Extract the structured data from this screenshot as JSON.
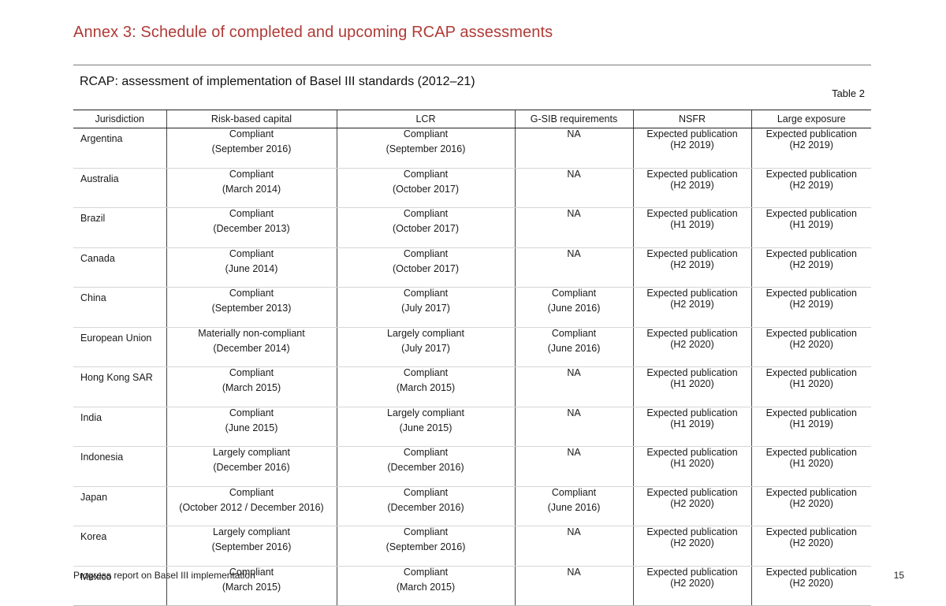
{
  "annex_title": "Annex 3: Schedule of completed and upcoming RCAP assessments",
  "table_title": "RCAP: assessment of implementation of Basel III standards (2012–21)",
  "table_number": "Table 2",
  "columns": [
    "Jurisdiction",
    "Risk-based capital",
    "LCR",
    "G-SIB requirements",
    "NSFR",
    "Large exposure"
  ],
  "rows": [
    {
      "jurisdiction": "Argentina",
      "rbc": [
        "Compliant",
        "(September 2016)"
      ],
      "lcr": [
        "Compliant",
        "(September 2016)"
      ],
      "gsib": [
        "NA",
        ""
      ],
      "nsfr": [
        "Expected publication",
        "(H2 2019)"
      ],
      "le": [
        "Expected publication",
        "(H2 2019)"
      ]
    },
    {
      "jurisdiction": "Australia",
      "rbc": [
        "Compliant",
        "(March 2014)"
      ],
      "lcr": [
        "Compliant",
        "(October 2017)"
      ],
      "gsib": [
        "NA",
        ""
      ],
      "nsfr": [
        "Expected publication",
        "(H2 2019)"
      ],
      "le": [
        "Expected publication",
        "(H2 2019)"
      ]
    },
    {
      "jurisdiction": "Brazil",
      "rbc": [
        "Compliant",
        "(December 2013)"
      ],
      "lcr": [
        "Compliant",
        "(October 2017)"
      ],
      "gsib": [
        "NA",
        ""
      ],
      "nsfr": [
        "Expected publication",
        "(H1 2019)"
      ],
      "le": [
        "Expected publication",
        "(H1 2019)"
      ]
    },
    {
      "jurisdiction": "Canada",
      "rbc": [
        "Compliant",
        "(June 2014)"
      ],
      "lcr": [
        "Compliant",
        "(October 2017)"
      ],
      "gsib": [
        "NA",
        ""
      ],
      "nsfr": [
        "Expected publication",
        "(H2 2019)"
      ],
      "le": [
        "Expected publication",
        "(H2 2019)"
      ]
    },
    {
      "jurisdiction": "China",
      "rbc": [
        "Compliant",
        "(September 2013)"
      ],
      "lcr": [
        "Compliant",
        "(July 2017)"
      ],
      "gsib": [
        "Compliant",
        "(June 2016)"
      ],
      "nsfr": [
        "Expected publication",
        "(H2 2019)"
      ],
      "le": [
        "Expected publication",
        "(H2 2019)"
      ]
    },
    {
      "jurisdiction": "European Union",
      "rbc": [
        "Materially non-compliant",
        "(December 2014)"
      ],
      "lcr": [
        "Largely compliant",
        "(July 2017)"
      ],
      "gsib": [
        "Compliant",
        "(June 2016)"
      ],
      "nsfr": [
        "Expected publication",
        "(H2 2020)"
      ],
      "le": [
        "Expected publication",
        "(H2 2020)"
      ]
    },
    {
      "jurisdiction": "Hong Kong SAR",
      "rbc": [
        "Compliant",
        "(March 2015)"
      ],
      "lcr": [
        "Compliant",
        "(March 2015)"
      ],
      "gsib": [
        "NA",
        ""
      ],
      "nsfr": [
        "Expected publication",
        "(H1 2020)"
      ],
      "le": [
        "Expected publication",
        "(H1 2020)"
      ]
    },
    {
      "jurisdiction": "India",
      "rbc": [
        "Compliant",
        "(June 2015)"
      ],
      "lcr": [
        "Largely compliant",
        "(June 2015)"
      ],
      "gsib": [
        "NA",
        ""
      ],
      "nsfr": [
        "Expected publication",
        "(H1 2019)"
      ],
      "le": [
        "Expected publication",
        "(H1 2019)"
      ]
    },
    {
      "jurisdiction": "Indonesia",
      "rbc": [
        "Largely compliant",
        "(December 2016)"
      ],
      "lcr": [
        "Compliant",
        "(December 2016)"
      ],
      "gsib": [
        "NA",
        ""
      ],
      "nsfr": [
        "Expected publication",
        "(H1 2020)"
      ],
      "le": [
        "Expected publication",
        "(H1 2020)"
      ]
    },
    {
      "jurisdiction": "Japan",
      "rbc": [
        "Compliant",
        "(October 2012 / December 2016)"
      ],
      "lcr": [
        "Compliant",
        "(December 2016)"
      ],
      "gsib": [
        "Compliant",
        "(June 2016)"
      ],
      "nsfr": [
        "Expected publication",
        "(H2 2020)"
      ],
      "le": [
        "Expected publication",
        "(H2 2020)"
      ]
    },
    {
      "jurisdiction": "Korea",
      "rbc": [
        "Largely compliant",
        "(September 2016)"
      ],
      "lcr": [
        "Compliant",
        "(September 2016)"
      ],
      "gsib": [
        "NA",
        ""
      ],
      "nsfr": [
        "Expected publication",
        "(H2 2020)"
      ],
      "le": [
        "Expected publication",
        "(H2 2020)"
      ]
    },
    {
      "jurisdiction": "Mexico",
      "rbc": [
        "Compliant",
        "(March 2015)"
      ],
      "lcr": [
        "Compliant",
        "(March 2015)"
      ],
      "gsib": [
        "NA",
        ""
      ],
      "nsfr": [
        "Expected publication",
        "(H2 2020)"
      ],
      "le": [
        "Expected publication",
        "(H2 2020)"
      ]
    }
  ],
  "footer": {
    "left": "Progress report on Basel III implementation",
    "page_number": "15"
  },
  "colors": {
    "annex_title": "#b03a36"
  }
}
